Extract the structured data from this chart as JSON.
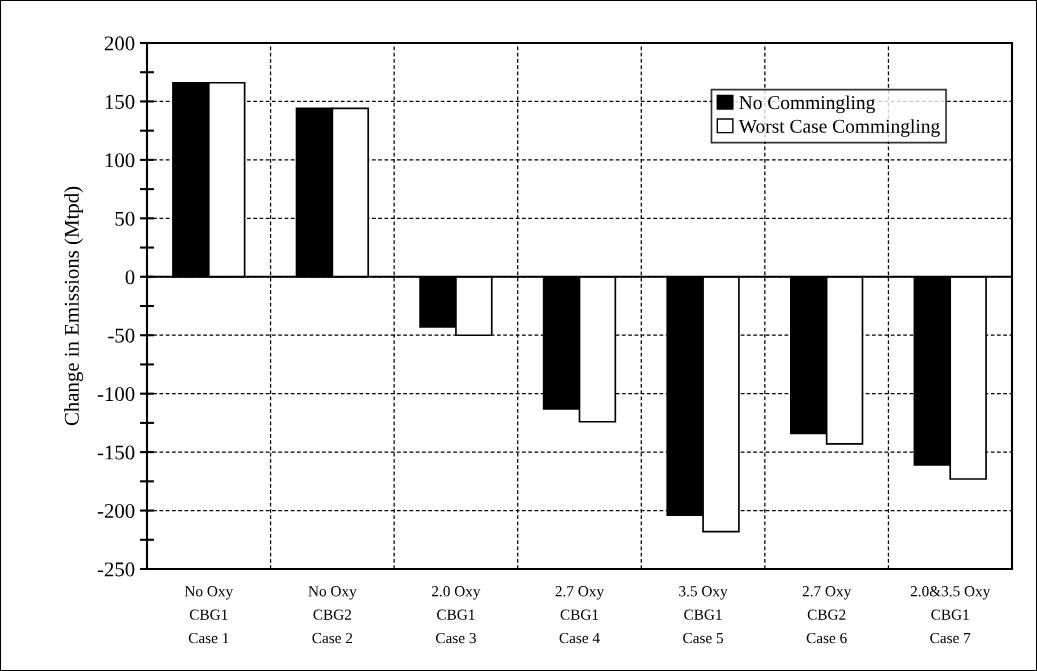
{
  "chart_data": {
    "type": "bar",
    "ylabel": "Change in Emissions (Mtpd)",
    "categories": [
      "No Oxy\nCBG1\nCase 1",
      "No Oxy\nCBG2\nCase 2",
      "2.0 Oxy\nCBG1\nCase 3",
      "2.7 Oxy\nCBG1\nCase 4",
      "3.5 Oxy\nCBG1\nCase 5",
      "2.7 Oxy\nCBG2\nCase 6",
      "2.0&3.5 Oxy\nCBG1\nCase 7"
    ],
    "series": [
      {
        "name": "No Commingling",
        "color": "#000000",
        "values": [
          166,
          144,
          -43,
          -113,
          -204,
          -134,
          -161
        ]
      },
      {
        "name": "Worst Case Commingling",
        "color": "#ffffff",
        "values": [
          166,
          144,
          -50,
          -124,
          -218,
          -143,
          -173
        ]
      }
    ],
    "ylim": [
      -250,
      200
    ],
    "yticks": [
      -250,
      {
        "value": -225,
        "label": null
      },
      -200,
      {
        "value": -175,
        "label": null
      },
      -150,
      {
        "value": -125,
        "label": null
      },
      -100,
      {
        "value": -75,
        "label": null
      },
      -50,
      {
        "value": -25,
        "label": null
      },
      0,
      {
        "value": 25,
        "label": null
      },
      50,
      {
        "value": 75,
        "label": null
      },
      100,
      {
        "value": 125,
        "label": null
      },
      150,
      {
        "value": 175,
        "label": null
      },
      200
    ],
    "grid": true,
    "legend": "top right"
  }
}
